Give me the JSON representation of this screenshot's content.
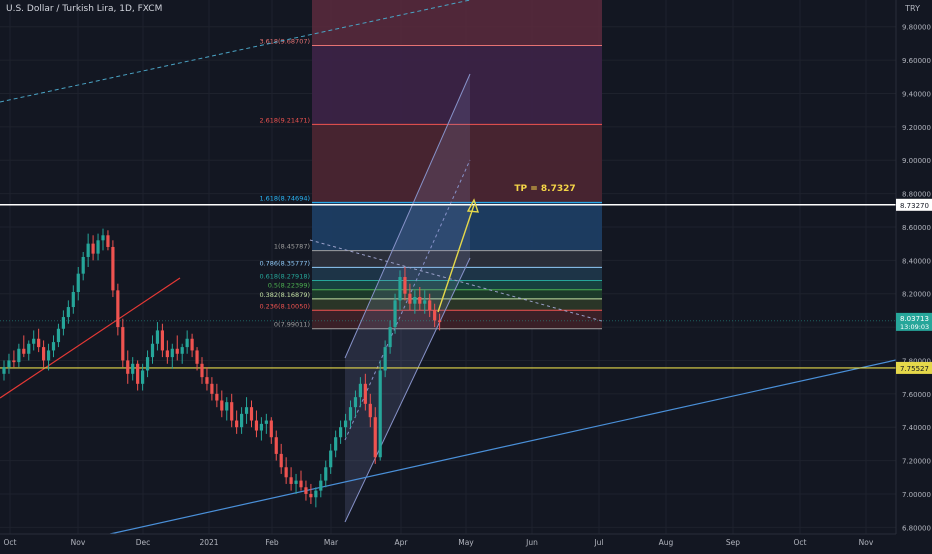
{
  "header": {
    "symbol_title": "U.S. Dollar / Turkish Lira, 1D, FXCM",
    "currency": "TRY"
  },
  "colors": {
    "background": "#131722",
    "up": "#26a69a",
    "down": "#ef5350",
    "grid": "#1e222d",
    "axis_text": "#b2b5be",
    "price_badge": "#26a69a",
    "tp_line": "#ffffff",
    "yellow": "#e5d84a",
    "channel": "#8792c9",
    "trend_blue": "#4a90d9",
    "trend_red": "#e53935",
    "teal_dash": "#4aa3c4"
  },
  "chart_data": {
    "type": "candlestick",
    "instrument": "USD/TRY",
    "timeframe": "1D",
    "ylim": [
      6.76,
      9.96
    ],
    "yticks": [
      "9.80000",
      "9.60000",
      "9.40000",
      "9.20000",
      "9.00000",
      "8.80000",
      "8.60000",
      "8.40000",
      "8.20000",
      "8.00000",
      "7.80000",
      "7.60000",
      "7.40000",
      "7.20000",
      "7.00000",
      "6.80000"
    ],
    "xticks": [
      "Oct",
      "Nov",
      "Dec",
      "2021",
      "Feb",
      "Mar",
      "Apr",
      "May",
      "Jun",
      "Jul",
      "Aug",
      "Sep",
      "Oct",
      "Nov"
    ],
    "ohlc": [
      [
        7.72,
        7.8,
        7.68,
        7.76
      ],
      [
        7.76,
        7.84,
        7.72,
        7.8
      ],
      [
        7.8,
        7.86,
        7.76,
        7.79
      ],
      [
        7.79,
        7.9,
        7.76,
        7.87
      ],
      [
        7.87,
        7.95,
        7.82,
        7.84
      ],
      [
        7.84,
        7.92,
        7.8,
        7.9
      ],
      [
        7.9,
        7.98,
        7.86,
        7.93
      ],
      [
        7.93,
        7.99,
        7.85,
        7.88
      ],
      [
        7.88,
        7.92,
        7.76,
        7.8
      ],
      [
        7.8,
        7.9,
        7.74,
        7.86
      ],
      [
        7.86,
        7.95,
        7.82,
        7.91
      ],
      [
        7.91,
        8.02,
        7.88,
        7.99
      ],
      [
        7.99,
        8.1,
        7.95,
        8.06
      ],
      [
        8.06,
        8.16,
        8.02,
        8.12
      ],
      [
        8.12,
        8.25,
        8.08,
        8.21
      ],
      [
        8.21,
        8.36,
        8.16,
        8.32
      ],
      [
        8.32,
        8.45,
        8.28,
        8.42
      ],
      [
        8.42,
        8.56,
        8.36,
        8.5
      ],
      [
        8.5,
        8.55,
        8.4,
        8.44
      ],
      [
        8.44,
        8.56,
        8.4,
        8.52
      ],
      [
        8.52,
        8.59,
        8.46,
        8.55
      ],
      [
        8.55,
        8.58,
        8.46,
        8.48
      ],
      [
        8.48,
        8.52,
        8.18,
        8.22
      ],
      [
        8.22,
        8.26,
        7.95,
        8.0
      ],
      [
        8.0,
        8.05,
        7.76,
        7.8
      ],
      [
        7.8,
        7.86,
        7.66,
        7.72
      ],
      [
        7.72,
        7.82,
        7.68,
        7.78
      ],
      [
        7.78,
        7.8,
        7.62,
        7.66
      ],
      [
        7.66,
        7.78,
        7.62,
        7.74
      ],
      [
        7.74,
        7.86,
        7.7,
        7.82
      ],
      [
        7.82,
        7.95,
        7.78,
        7.9
      ],
      [
        7.9,
        8.03,
        7.86,
        7.98
      ],
      [
        7.98,
        8.02,
        7.82,
        7.86
      ],
      [
        7.86,
        7.92,
        7.78,
        7.82
      ],
      [
        7.82,
        7.9,
        7.75,
        7.87
      ],
      [
        7.87,
        7.95,
        7.8,
        7.84
      ],
      [
        7.84,
        7.9,
        7.78,
        7.88
      ],
      [
        7.88,
        7.98,
        7.84,
        7.93
      ],
      [
        7.93,
        7.96,
        7.82,
        7.86
      ],
      [
        7.86,
        7.88,
        7.74,
        7.78
      ],
      [
        7.78,
        7.82,
        7.66,
        7.7
      ],
      [
        7.7,
        7.76,
        7.62,
        7.66
      ],
      [
        7.66,
        7.7,
        7.56,
        7.6
      ],
      [
        7.6,
        7.66,
        7.52,
        7.56
      ],
      [
        7.56,
        7.62,
        7.46,
        7.5
      ],
      [
        7.5,
        7.58,
        7.44,
        7.55
      ],
      [
        7.55,
        7.6,
        7.4,
        7.44
      ],
      [
        7.44,
        7.5,
        7.36,
        7.4
      ],
      [
        7.4,
        7.52,
        7.36,
        7.48
      ],
      [
        7.48,
        7.58,
        7.42,
        7.52
      ],
      [
        7.52,
        7.56,
        7.4,
        7.44
      ],
      [
        7.44,
        7.5,
        7.34,
        7.38
      ],
      [
        7.38,
        7.46,
        7.32,
        7.42
      ],
      [
        7.42,
        7.48,
        7.36,
        7.44
      ],
      [
        7.44,
        7.46,
        7.3,
        7.34
      ],
      [
        7.34,
        7.38,
        7.2,
        7.24
      ],
      [
        7.24,
        7.3,
        7.12,
        7.16
      ],
      [
        7.16,
        7.22,
        7.06,
        7.1
      ],
      [
        7.1,
        7.16,
        7.02,
        7.06
      ],
      [
        7.06,
        7.12,
        7.0,
        7.08
      ],
      [
        7.08,
        7.14,
        7.02,
        7.04
      ],
      [
        7.04,
        7.08,
        6.96,
        7.0
      ],
      [
        7.0,
        7.06,
        6.94,
        6.98
      ],
      [
        6.98,
        7.04,
        6.92,
        7.02
      ],
      [
        7.02,
        7.12,
        6.98,
        7.08
      ],
      [
        7.08,
        7.2,
        7.04,
        7.16
      ],
      [
        7.16,
        7.3,
        7.12,
        7.26
      ],
      [
        7.26,
        7.38,
        7.22,
        7.34
      ],
      [
        7.34,
        7.44,
        7.3,
        7.4
      ],
      [
        7.4,
        7.48,
        7.34,
        7.44
      ],
      [
        7.44,
        7.56,
        7.4,
        7.52
      ],
      [
        7.52,
        7.62,
        7.46,
        7.58
      ],
      [
        7.58,
        7.7,
        7.52,
        7.66
      ],
      [
        7.66,
        7.72,
        7.5,
        7.54
      ],
      [
        7.54,
        7.6,
        7.4,
        7.46
      ],
      [
        7.46,
        7.52,
        7.18,
        7.22
      ],
      [
        7.22,
        7.8,
        7.2,
        7.74
      ],
      [
        7.74,
        7.92,
        7.7,
        7.88
      ],
      [
        7.88,
        8.04,
        7.84,
        8.0
      ],
      [
        8.0,
        8.2,
        7.96,
        8.16
      ],
      [
        8.16,
        8.34,
        8.1,
        8.3
      ],
      [
        8.3,
        8.36,
        8.16,
        8.2
      ],
      [
        8.2,
        8.26,
        8.1,
        8.14
      ],
      [
        8.14,
        8.22,
        8.08,
        8.18
      ],
      [
        8.18,
        8.24,
        8.1,
        8.14
      ],
      [
        8.14,
        8.22,
        8.08,
        8.16
      ],
      [
        8.16,
        8.2,
        8.06,
        8.1
      ],
      [
        8.1,
        8.14,
        8.0,
        8.04
      ],
      [
        8.04,
        8.08,
        7.98,
        8.03
      ]
    ],
    "last_price": "8.03713",
    "countdown": "13:09:03",
    "tp_level": "8.73270",
    "support_level": "7.75527",
    "fib_levels": [
      {
        "label": "3.618(9.68707)",
        "value": 9.68707,
        "color": "#e57373"
      },
      {
        "label": "2.618(9.21471)",
        "value": 9.21471,
        "color": "#ef5350"
      },
      {
        "label": "1.618(8.74694)",
        "value": 8.74694,
        "color": "#29b6f6"
      },
      {
        "label": "1(8.45787)",
        "value": 8.45787,
        "color": "#9e9e9e"
      },
      {
        "label": "0.786(8.35777)",
        "value": 8.35777,
        "color": "#90caf9"
      },
      {
        "label": "0.618(8.27918)",
        "value": 8.27918,
        "color": "#26a69a"
      },
      {
        "label": "0.5(8.22399)",
        "value": 8.22399,
        "color": "#4caf50"
      },
      {
        "label": "0.382(8.16879)",
        "value": 8.16879,
        "color": "#c5e1a5"
      },
      {
        "label": "0.236(8.10050)",
        "value": 8.1005,
        "color": "#ef5350"
      },
      {
        "label": "0(7.99011)",
        "value": 7.99011,
        "color": "#9e9e9e"
      }
    ],
    "annotations": {
      "tp_text": "TP = 8.7327"
    }
  }
}
